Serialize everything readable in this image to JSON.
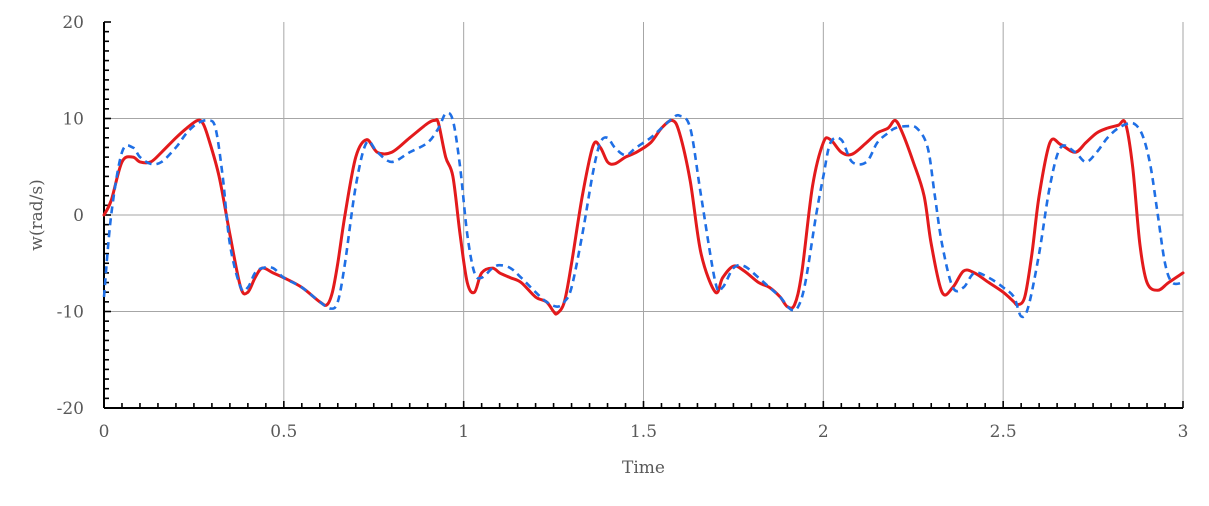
{
  "chart_data": {
    "type": "line",
    "title": "",
    "xlabel": "Time",
    "ylabel": "w(rad/s)",
    "xlim": [
      0,
      3
    ],
    "ylim": [
      -20,
      20
    ],
    "grid": true,
    "legend": "none",
    "x_ticks": [
      {
        "value": 0,
        "label": "0"
      },
      {
        "value": 0.5,
        "label": "0.5"
      },
      {
        "value": 1,
        "label": "1"
      },
      {
        "value": 1.5,
        "label": "1.5"
      },
      {
        "value": 2,
        "label": "2"
      },
      {
        "value": 2.5,
        "label": "2.5"
      },
      {
        "value": 3,
        "label": "3"
      }
    ],
    "y_ticks": [
      {
        "value": -20,
        "label": "-20"
      },
      {
        "value": -10,
        "label": "-10"
      },
      {
        "value": 0,
        "label": "0"
      },
      {
        "value": 10,
        "label": "10"
      },
      {
        "value": 20,
        "label": "20"
      }
    ],
    "series": [
      {
        "color": "#e31a1c",
        "dash": "solid",
        "x": [
          0,
          0.02,
          0.05,
          0.08,
          0.1,
          0.13,
          0.16,
          0.2,
          0.23,
          0.26,
          0.275,
          0.29,
          0.32,
          0.35,
          0.38,
          0.4,
          0.42,
          0.44,
          0.47,
          0.5,
          0.55,
          0.6,
          0.62,
          0.635,
          0.65,
          0.67,
          0.7,
          0.73,
          0.76,
          0.8,
          0.85,
          0.9,
          0.92,
          0.93,
          0.95,
          0.97,
          0.99,
          1.01,
          1.03,
          1.05,
          1.08,
          1.1,
          1.13,
          1.16,
          1.2,
          1.23,
          1.25,
          1.26,
          1.28,
          1.3,
          1.33,
          1.36,
          1.38,
          1.4,
          1.42,
          1.45,
          1.48,
          1.52,
          1.55,
          1.58,
          1.6,
          1.63,
          1.66,
          1.7,
          1.72,
          1.75,
          1.78,
          1.82,
          1.85,
          1.88,
          1.9,
          1.92,
          1.94,
          1.97,
          2.0,
          2.02,
          2.05,
          2.08,
          2.12,
          2.15,
          2.18,
          2.2,
          2.22,
          2.25,
          2.28,
          2.3,
          2.33,
          2.36,
          2.39,
          2.42,
          2.46,
          2.5,
          2.53,
          2.54,
          2.56,
          2.58,
          2.6,
          2.63,
          2.66,
          2.7,
          2.73,
          2.76,
          2.79,
          2.82,
          2.84,
          2.86,
          2.88,
          2.9,
          2.93,
          2.96,
          3.0
        ],
        "y": [
          0,
          1.5,
          5.5,
          6.0,
          5.5,
          5.5,
          6.5,
          8.0,
          9.0,
          9.8,
          9.5,
          8.0,
          4.0,
          -2.0,
          -7.5,
          -8.0,
          -6.5,
          -5.5,
          -6.0,
          -6.5,
          -7.5,
          -9.0,
          -9.3,
          -8.0,
          -5.0,
          0.0,
          6.0,
          7.8,
          6.5,
          6.5,
          8.0,
          9.5,
          9.8,
          9.5,
          6.0,
          4.0,
          -2.0,
          -7.0,
          -8.0,
          -6.0,
          -5.5,
          -6.0,
          -6.5,
          -7.0,
          -8.5,
          -9.0,
          -10.0,
          -10.2,
          -9.0,
          -5.0,
          2.0,
          7.2,
          7.0,
          5.5,
          5.3,
          6.0,
          6.5,
          7.5,
          9.0,
          9.8,
          8.5,
          3.5,
          -4.0,
          -8.0,
          -6.5,
          -5.3,
          -5.8,
          -7.0,
          -7.5,
          -8.5,
          -9.5,
          -9.3,
          -6.0,
          3.0,
          7.5,
          7.8,
          6.5,
          6.3,
          7.5,
          8.5,
          9.0,
          9.8,
          8.5,
          5.5,
          2.0,
          -3.0,
          -8.0,
          -7.5,
          -5.8,
          -6.0,
          -7.0,
          -8.0,
          -9.0,
          -9.3,
          -8.5,
          -4.0,
          2.0,
          7.5,
          7.3,
          6.5,
          7.5,
          8.5,
          9.0,
          9.3,
          9.5,
          5.0,
          -3.0,
          -7.0,
          -7.8,
          -7.0,
          -6.0
        ]
      },
      {
        "color": "#1f6fe5",
        "dash": "dashed",
        "x": [
          0,
          0.02,
          0.05,
          0.08,
          0.1,
          0.13,
          0.16,
          0.2,
          0.23,
          0.26,
          0.29,
          0.31,
          0.33,
          0.35,
          0.38,
          0.4,
          0.42,
          0.44,
          0.47,
          0.5,
          0.55,
          0.6,
          0.63,
          0.65,
          0.67,
          0.7,
          0.73,
          0.76,
          0.8,
          0.85,
          0.9,
          0.93,
          0.95,
          0.97,
          0.99,
          1.01,
          1.03,
          1.05,
          1.08,
          1.1,
          1.13,
          1.16,
          1.2,
          1.23,
          1.26,
          1.28,
          1.3,
          1.33,
          1.36,
          1.38,
          1.4,
          1.42,
          1.45,
          1.48,
          1.52,
          1.55,
          1.58,
          1.6,
          1.63,
          1.66,
          1.7,
          1.72,
          1.75,
          1.78,
          1.82,
          1.85,
          1.88,
          1.91,
          1.93,
          1.95,
          1.98,
          2.0,
          2.02,
          2.05,
          2.08,
          2.12,
          2.15,
          2.18,
          2.2,
          2.23,
          2.26,
          2.29,
          2.31,
          2.33,
          2.36,
          2.39,
          2.42,
          2.46,
          2.5,
          2.53,
          2.55,
          2.57,
          2.6,
          2.63,
          2.66,
          2.7,
          2.73,
          2.76,
          2.79,
          2.82,
          2.85,
          2.87,
          2.89,
          2.91,
          2.93,
          2.95,
          2.97,
          3.0
        ],
        "y": [
          -8.5,
          0.0,
          6.5,
          7.0,
          6.0,
          5.3,
          5.5,
          7.0,
          8.5,
          9.5,
          9.8,
          9.0,
          4.0,
          -3.0,
          -7.5,
          -7.5,
          -6.0,
          -5.5,
          -5.5,
          -6.5,
          -7.5,
          -9.0,
          -9.7,
          -9.0,
          -5.0,
          3.0,
          7.5,
          6.5,
          5.5,
          6.5,
          7.5,
          9.0,
          10.5,
          9.8,
          5.0,
          -2.0,
          -6.0,
          -6.5,
          -5.5,
          -5.2,
          -5.5,
          -6.5,
          -8.0,
          -9.0,
          -9.5,
          -9.0,
          -7.5,
          -2.0,
          4.5,
          7.5,
          8.0,
          7.0,
          6.2,
          7.0,
          8.0,
          9.0,
          10.0,
          10.3,
          9.0,
          2.0,
          -7.0,
          -7.5,
          -5.5,
          -5.3,
          -6.5,
          -7.5,
          -8.5,
          -9.8,
          -9.5,
          -7.0,
          0.0,
          4.0,
          7.5,
          7.8,
          5.5,
          5.5,
          7.5,
          8.5,
          9.0,
          9.2,
          9.0,
          7.0,
          2.0,
          -3.0,
          -7.5,
          -7.5,
          -6.0,
          -6.5,
          -7.5,
          -8.5,
          -10.5,
          -9.5,
          -4.0,
          3.0,
          7.0,
          6.5,
          5.5,
          6.5,
          8.0,
          9.0,
          9.5,
          9.3,
          8.0,
          5.0,
          0.0,
          -5.0,
          -7.0,
          -7.0
        ]
      }
    ]
  }
}
